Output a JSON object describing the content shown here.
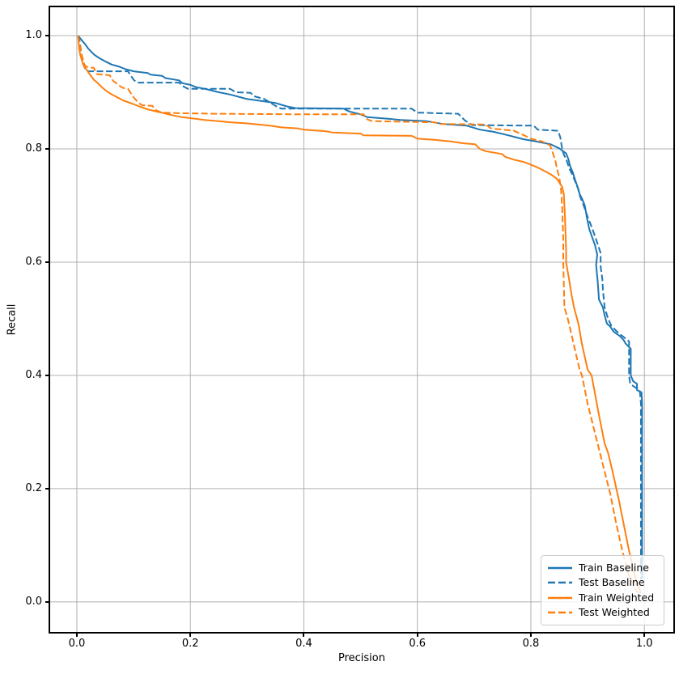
{
  "figure": {
    "background": "#ffffff",
    "axes_border_color": "#000000"
  },
  "chart_data": {
    "type": "line",
    "title": "",
    "xlabel": "Precision",
    "ylabel": "Recall",
    "grid": true,
    "grid_color": "#b0b0b0",
    "legend_position": "lower right",
    "xlim": [
      -0.047,
      1.051
    ],
    "ylim": [
      -0.053,
      1.05
    ],
    "x_ticks": {
      "values": [
        0.0,
        0.2,
        0.4,
        0.6,
        0.8,
        1.0
      ],
      "labels": [
        "0.0",
        "0.2",
        "0.4",
        "0.6",
        "0.8",
        "1.0"
      ]
    },
    "y_ticks": {
      "values": [
        0.0,
        0.2,
        0.4,
        0.6,
        0.8,
        1.0
      ],
      "labels": [
        "0.0",
        "0.2",
        "0.4",
        "0.6",
        "0.8",
        "1.0"
      ]
    },
    "series": [
      {
        "name": "Train Baseline",
        "color": "#1f77b4",
        "dash": false,
        "linewidth": 2,
        "points": [
          [
            0.002,
            1.0
          ],
          [
            0.006,
            0.995
          ],
          [
            0.011,
            0.989
          ],
          [
            0.016,
            0.983
          ],
          [
            0.02,
            0.977
          ],
          [
            0.026,
            0.971
          ],
          [
            0.031,
            0.966
          ],
          [
            0.04,
            0.96
          ],
          [
            0.051,
            0.954
          ],
          [
            0.061,
            0.949
          ],
          [
            0.075,
            0.945
          ],
          [
            0.085,
            0.941
          ],
          [
            0.1,
            0.937
          ],
          [
            0.125,
            0.934
          ],
          [
            0.13,
            0.931
          ],
          [
            0.15,
            0.929
          ],
          [
            0.156,
            0.925
          ],
          [
            0.18,
            0.921
          ],
          [
            0.186,
            0.916
          ],
          [
            0.2,
            0.913
          ],
          [
            0.21,
            0.909
          ],
          [
            0.226,
            0.906
          ],
          [
            0.25,
            0.9
          ],
          [
            0.27,
            0.896
          ],
          [
            0.3,
            0.888
          ],
          [
            0.33,
            0.884
          ],
          [
            0.35,
            0.881
          ],
          [
            0.37,
            0.875
          ],
          [
            0.385,
            0.872
          ],
          [
            0.47,
            0.871
          ],
          [
            0.48,
            0.866
          ],
          [
            0.5,
            0.861
          ],
          [
            0.512,
            0.856
          ],
          [
            0.55,
            0.853
          ],
          [
            0.57,
            0.851
          ],
          [
            0.616,
            0.849
          ],
          [
            0.645,
            0.844
          ],
          [
            0.687,
            0.841
          ],
          [
            0.71,
            0.834
          ],
          [
            0.735,
            0.83
          ],
          [
            0.76,
            0.824
          ],
          [
            0.787,
            0.817
          ],
          [
            0.81,
            0.813
          ],
          [
            0.835,
            0.808
          ],
          [
            0.85,
            0.801
          ],
          [
            0.862,
            0.792
          ],
          [
            0.866,
            0.782
          ],
          [
            0.869,
            0.77
          ],
          [
            0.874,
            0.758
          ],
          [
            0.878,
            0.745
          ],
          [
            0.883,
            0.731
          ],
          [
            0.886,
            0.72
          ],
          [
            0.891,
            0.71
          ],
          [
            0.895,
            0.7
          ],
          [
            0.899,
            0.677
          ],
          [
            0.903,
            0.658
          ],
          [
            0.908,
            0.644
          ],
          [
            0.913,
            0.63
          ],
          [
            0.917,
            0.613
          ],
          [
            0.915,
            0.595
          ],
          [
            0.918,
            0.563
          ],
          [
            0.92,
            0.534
          ],
          [
            0.927,
            0.52
          ],
          [
            0.93,
            0.506
          ],
          [
            0.934,
            0.491
          ],
          [
            0.939,
            0.487
          ],
          [
            0.946,
            0.477
          ],
          [
            0.956,
            0.47
          ],
          [
            0.963,
            0.463
          ],
          [
            0.967,
            0.456
          ],
          [
            0.972,
            0.451
          ],
          [
            0.976,
            0.447
          ],
          [
            0.976,
            0.4
          ],
          [
            0.98,
            0.39
          ],
          [
            0.987,
            0.385
          ],
          [
            0.987,
            0.374
          ],
          [
            0.995,
            0.37
          ],
          [
            0.996,
            0.35
          ],
          [
            0.996,
            0.04
          ]
        ]
      },
      {
        "name": "Test Baseline",
        "color": "#1f77b4",
        "dash": true,
        "linewidth": 2,
        "points": [
          [
            0.002,
            1.0
          ],
          [
            0.005,
            0.99
          ],
          [
            0.007,
            0.975
          ],
          [
            0.009,
            0.962
          ],
          [
            0.011,
            0.951
          ],
          [
            0.013,
            0.945
          ],
          [
            0.016,
            0.94
          ],
          [
            0.02,
            0.937
          ],
          [
            0.09,
            0.937
          ],
          [
            0.096,
            0.928
          ],
          [
            0.1,
            0.922
          ],
          [
            0.106,
            0.917
          ],
          [
            0.18,
            0.917
          ],
          [
            0.186,
            0.911
          ],
          [
            0.196,
            0.906
          ],
          [
            0.27,
            0.906
          ],
          [
            0.28,
            0.9
          ],
          [
            0.306,
            0.899
          ],
          [
            0.312,
            0.893
          ],
          [
            0.33,
            0.888
          ],
          [
            0.35,
            0.876
          ],
          [
            0.36,
            0.871
          ],
          [
            0.59,
            0.871
          ],
          [
            0.6,
            0.864
          ],
          [
            0.672,
            0.862
          ],
          [
            0.684,
            0.85
          ],
          [
            0.697,
            0.842
          ],
          [
            0.805,
            0.841
          ],
          [
            0.812,
            0.834
          ],
          [
            0.848,
            0.832
          ],
          [
            0.852,
            0.82
          ],
          [
            0.855,
            0.8
          ],
          [
            0.858,
            0.79
          ],
          [
            0.862,
            0.782
          ],
          [
            0.868,
            0.765
          ],
          [
            0.875,
            0.75
          ],
          [
            0.883,
            0.73
          ],
          [
            0.887,
            0.715
          ],
          [
            0.893,
            0.7
          ],
          [
            0.9,
            0.68
          ],
          [
            0.908,
            0.66
          ],
          [
            0.916,
            0.637
          ],
          [
            0.923,
            0.616
          ],
          [
            0.923,
            0.592
          ],
          [
            0.926,
            0.57
          ],
          [
            0.927,
            0.551
          ],
          [
            0.93,
            0.52
          ],
          [
            0.936,
            0.5
          ],
          [
            0.942,
            0.487
          ],
          [
            0.952,
            0.477
          ],
          [
            0.963,
            0.468
          ],
          [
            0.973,
            0.46
          ],
          [
            0.973,
            0.4
          ],
          [
            0.975,
            0.385
          ],
          [
            0.985,
            0.378
          ],
          [
            0.992,
            0.372
          ],
          [
            0.994,
            0.35
          ],
          [
            0.994,
            0.04
          ]
        ]
      },
      {
        "name": "Train Weighted",
        "color": "#ff7f0e",
        "dash": false,
        "linewidth": 2,
        "points": [
          [
            0.002,
            1.0
          ],
          [
            0.003,
            0.99
          ],
          [
            0.004,
            0.977
          ],
          [
            0.006,
            0.966
          ],
          [
            0.009,
            0.956
          ],
          [
            0.011,
            0.949
          ],
          [
            0.015,
            0.943
          ],
          [
            0.019,
            0.937
          ],
          [
            0.023,
            0.931
          ],
          [
            0.03,
            0.922
          ],
          [
            0.036,
            0.917
          ],
          [
            0.044,
            0.909
          ],
          [
            0.051,
            0.903
          ],
          [
            0.06,
            0.897
          ],
          [
            0.071,
            0.891
          ],
          [
            0.083,
            0.885
          ],
          [
            0.097,
            0.88
          ],
          [
            0.11,
            0.875
          ],
          [
            0.124,
            0.87
          ],
          [
            0.14,
            0.866
          ],
          [
            0.153,
            0.863
          ],
          [
            0.17,
            0.859
          ],
          [
            0.185,
            0.856
          ],
          [
            0.21,
            0.853
          ],
          [
            0.225,
            0.851
          ],
          [
            0.25,
            0.849
          ],
          [
            0.27,
            0.847
          ],
          [
            0.3,
            0.845
          ],
          [
            0.32,
            0.843
          ],
          [
            0.34,
            0.841
          ],
          [
            0.36,
            0.838
          ],
          [
            0.39,
            0.836
          ],
          [
            0.4,
            0.834
          ],
          [
            0.44,
            0.831
          ],
          [
            0.45,
            0.829
          ],
          [
            0.5,
            0.827
          ],
          [
            0.505,
            0.824
          ],
          [
            0.59,
            0.823
          ],
          [
            0.6,
            0.818
          ],
          [
            0.63,
            0.816
          ],
          [
            0.66,
            0.813
          ],
          [
            0.68,
            0.81
          ],
          [
            0.702,
            0.808
          ],
          [
            0.71,
            0.8
          ],
          [
            0.72,
            0.796
          ],
          [
            0.749,
            0.791
          ],
          [
            0.755,
            0.786
          ],
          [
            0.77,
            0.781
          ],
          [
            0.787,
            0.777
          ],
          [
            0.8,
            0.772
          ],
          [
            0.81,
            0.768
          ],
          [
            0.82,
            0.763
          ],
          [
            0.835,
            0.755
          ],
          [
            0.845,
            0.748
          ],
          [
            0.85,
            0.741
          ],
          [
            0.855,
            0.733
          ],
          [
            0.858,
            0.72
          ],
          [
            0.859,
            0.7
          ],
          [
            0.86,
            0.68
          ],
          [
            0.861,
            0.65
          ],
          [
            0.862,
            0.62
          ],
          [
            0.862,
            0.6
          ],
          [
            0.868,
            0.565
          ],
          [
            0.872,
            0.54
          ],
          [
            0.876,
            0.52
          ],
          [
            0.884,
            0.49
          ],
          [
            0.89,
            0.455
          ],
          [
            0.9,
            0.41
          ],
          [
            0.907,
            0.4
          ],
          [
            0.92,
            0.33
          ],
          [
            0.93,
            0.28
          ],
          [
            0.936,
            0.263
          ],
          [
            0.943,
            0.234
          ],
          [
            0.955,
            0.18
          ],
          [
            0.965,
            0.13
          ],
          [
            0.973,
            0.09
          ],
          [
            0.985,
            0.04
          ],
          [
            0.994,
            0.015
          ]
        ]
      },
      {
        "name": "Test Weighted",
        "color": "#ff7f0e",
        "dash": true,
        "linewidth": 2,
        "points": [
          [
            0.002,
            1.0
          ],
          [
            0.005,
            0.985
          ],
          [
            0.008,
            0.968
          ],
          [
            0.011,
            0.957
          ],
          [
            0.013,
            0.95
          ],
          [
            0.015,
            0.946
          ],
          [
            0.02,
            0.944
          ],
          [
            0.03,
            0.943
          ],
          [
            0.035,
            0.932
          ],
          [
            0.058,
            0.93
          ],
          [
            0.064,
            0.92
          ],
          [
            0.068,
            0.917
          ],
          [
            0.08,
            0.908
          ],
          [
            0.09,
            0.906
          ],
          [
            0.096,
            0.897
          ],
          [
            0.1,
            0.891
          ],
          [
            0.108,
            0.882
          ],
          [
            0.115,
            0.877
          ],
          [
            0.133,
            0.876
          ],
          [
            0.14,
            0.868
          ],
          [
            0.15,
            0.864
          ],
          [
            0.18,
            0.863
          ],
          [
            0.25,
            0.862
          ],
          [
            0.4,
            0.861
          ],
          [
            0.505,
            0.861
          ],
          [
            0.512,
            0.852
          ],
          [
            0.52,
            0.849
          ],
          [
            0.63,
            0.847
          ],
          [
            0.64,
            0.844
          ],
          [
            0.72,
            0.843
          ],
          [
            0.73,
            0.836
          ],
          [
            0.77,
            0.832
          ],
          [
            0.79,
            0.823
          ],
          [
            0.8,
            0.818
          ],
          [
            0.82,
            0.813
          ],
          [
            0.834,
            0.806
          ],
          [
            0.838,
            0.795
          ],
          [
            0.843,
            0.78
          ],
          [
            0.846,
            0.765
          ],
          [
            0.85,
            0.75
          ],
          [
            0.853,
            0.73
          ],
          [
            0.855,
            0.7
          ],
          [
            0.856,
            0.67
          ],
          [
            0.857,
            0.64
          ],
          [
            0.857,
            0.6
          ],
          [
            0.858,
            0.56
          ],
          [
            0.859,
            0.52
          ],
          [
            0.865,
            0.5
          ],
          [
            0.872,
            0.47
          ],
          [
            0.88,
            0.435
          ],
          [
            0.886,
            0.41
          ],
          [
            0.89,
            0.4
          ],
          [
            0.9,
            0.35
          ],
          [
            0.91,
            0.31
          ],
          [
            0.92,
            0.27
          ],
          [
            0.929,
            0.234
          ],
          [
            0.94,
            0.19
          ],
          [
            0.95,
            0.14
          ],
          [
            0.96,
            0.095
          ],
          [
            0.97,
            0.055
          ],
          [
            0.985,
            0.02
          ],
          [
            0.994,
            0.012
          ]
        ]
      }
    ]
  }
}
